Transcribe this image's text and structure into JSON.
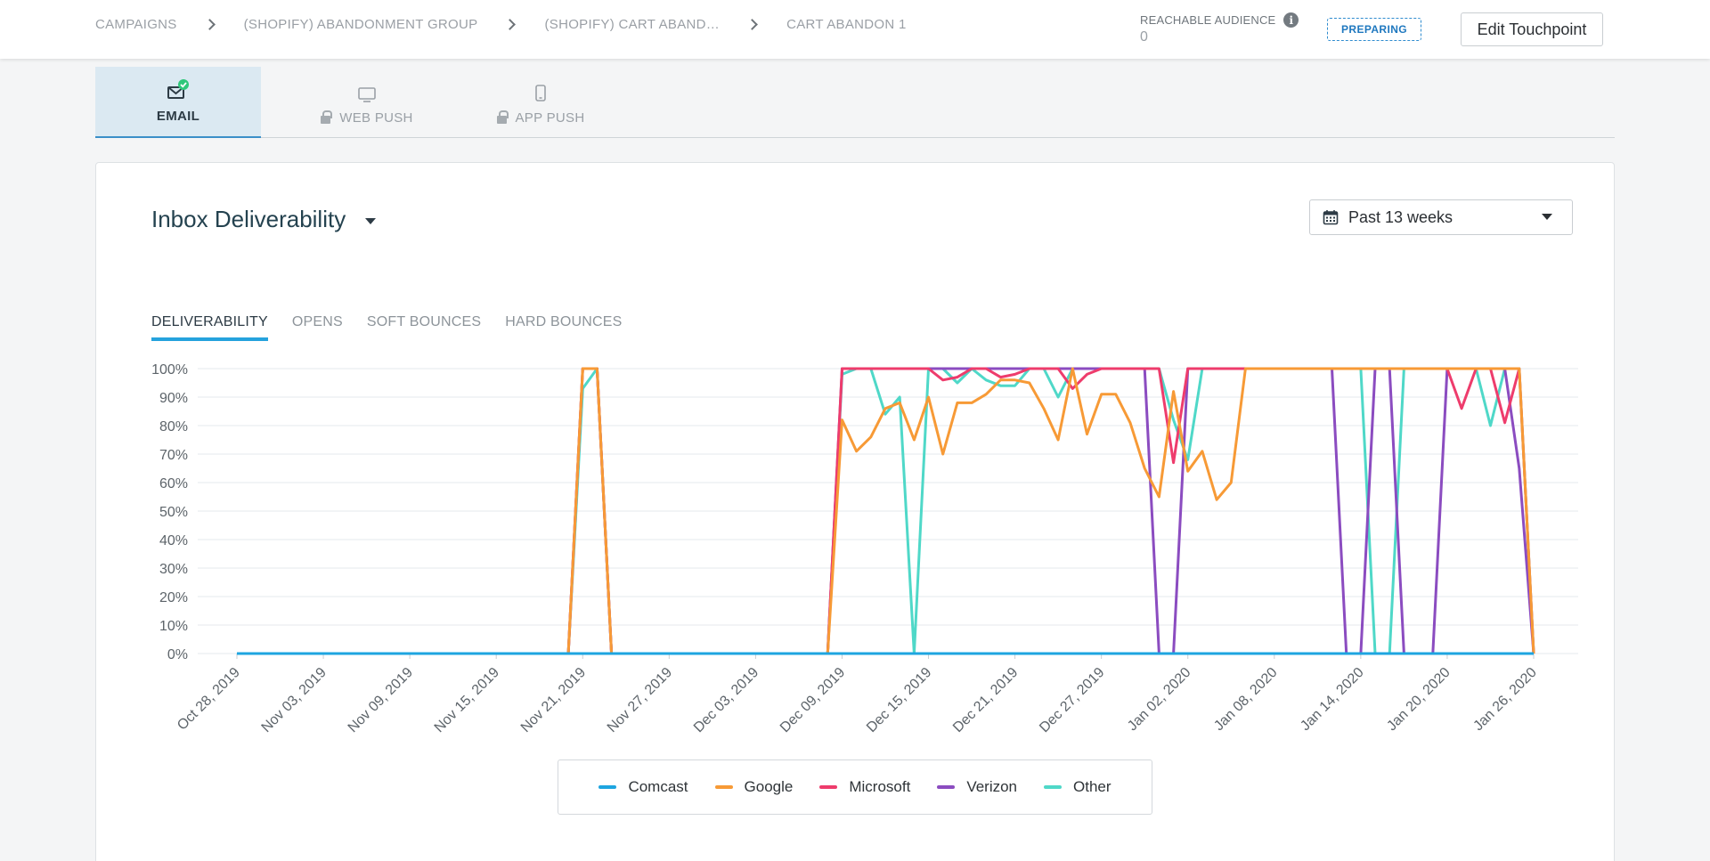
{
  "breadcrumb": [
    "CAMPAIGNS",
    "(SHOPIFY) ABANDONMENT GROUP",
    "(SHOPIFY) CART ABAND…",
    "CART ABANDON 1"
  ],
  "audience": {
    "label": "REACHABLE AUDIENCE",
    "value": "0",
    "info_icon": "info-icon"
  },
  "status": "PREPARING",
  "edit_button": "Edit Touchpoint",
  "channel_tabs": [
    {
      "label": "EMAIL",
      "icon": "envelope-check-icon",
      "active": true
    },
    {
      "label": "WEB PUSH",
      "icon": "monitor-icon",
      "locked": true
    },
    {
      "label": "APP PUSH",
      "icon": "phone-icon",
      "locked": true
    }
  ],
  "report": {
    "title": "Inbox Deliverability",
    "date_range": "Past 13 weeks"
  },
  "metric_tabs": [
    "DELIVERABILITY",
    "OPENS",
    "SOFT BOUNCES",
    "HARD BOUNCES"
  ],
  "colors": {
    "Comcast": "#1ea5e0",
    "Google": "#f79a36",
    "Microsoft": "#ee3c6c",
    "Verizon": "#8b4cc0",
    "Other": "#4fd8c8",
    "accent": "#25a2dd"
  },
  "chart_data": {
    "type": "line",
    "title": "",
    "xlabel": "",
    "ylabel": "",
    "ylim": [
      0,
      100
    ],
    "y_ticks": [
      "0%",
      "10%",
      "20%",
      "30%",
      "40%",
      "50%",
      "60%",
      "70%",
      "80%",
      "90%",
      "100%"
    ],
    "x_ticks": [
      "Oct 28, 2019",
      "Nov 03, 2019",
      "Nov 09, 2019",
      "Nov 15, 2019",
      "Nov 21, 2019",
      "Nov 27, 2019",
      "Dec 03, 2019",
      "Dec 09, 2019",
      "Dec 15, 2019",
      "Dec 21, 2019",
      "Dec 27, 2019",
      "Jan 02, 2020",
      "Jan 08, 2020",
      "Jan 14, 2020",
      "Jan 20, 2020",
      "Jan 26, 2020"
    ],
    "x_start": "2019-10-28",
    "x_end": "2020-01-26",
    "grid": true,
    "legend": "bottom",
    "series": [
      {
        "name": "Comcast",
        "points": [
          [
            "2019-10-28",
            0
          ],
          [
            "2020-01-26",
            0
          ]
        ]
      },
      {
        "name": "Google",
        "points": [
          [
            "2019-10-28",
            0
          ],
          [
            "2019-11-20",
            0
          ],
          [
            "2019-11-21",
            100
          ],
          [
            "2019-11-22",
            100
          ],
          [
            "2019-11-23",
            0
          ],
          [
            "2019-12-08",
            0
          ],
          [
            "2019-12-09",
            82
          ],
          [
            "2019-12-10",
            71
          ],
          [
            "2019-12-11",
            76
          ],
          [
            "2019-12-12",
            86
          ],
          [
            "2019-12-13",
            88
          ],
          [
            "2019-12-14",
            75
          ],
          [
            "2019-12-15",
            90
          ],
          [
            "2019-12-16",
            70
          ],
          [
            "2019-12-17",
            88
          ],
          [
            "2019-12-18",
            88
          ],
          [
            "2019-12-19",
            91
          ],
          [
            "2019-12-20",
            96
          ],
          [
            "2019-12-21",
            96
          ],
          [
            "2019-12-22",
            95
          ],
          [
            "2019-12-23",
            86
          ],
          [
            "2019-12-24",
            75
          ],
          [
            "2019-12-25",
            100
          ],
          [
            "2019-12-26",
            77
          ],
          [
            "2019-12-27",
            91
          ],
          [
            "2019-12-28",
            91
          ],
          [
            "2019-12-29",
            81
          ],
          [
            "2019-12-30",
            65
          ],
          [
            "2019-12-31",
            55
          ],
          [
            "2020-01-01",
            92
          ],
          [
            "2020-01-02",
            64
          ],
          [
            "2020-01-03",
            71
          ],
          [
            "2020-01-04",
            54
          ],
          [
            "2020-01-05",
            60
          ],
          [
            "2020-01-06",
            100
          ],
          [
            "2020-01-25",
            100
          ],
          [
            "2020-01-26",
            0
          ]
        ]
      },
      {
        "name": "Microsoft",
        "points": [
          [
            "2019-10-28",
            0
          ],
          [
            "2019-11-20",
            0
          ],
          [
            "2019-11-21",
            100
          ],
          [
            "2019-11-22",
            100
          ],
          [
            "2019-11-23",
            0
          ],
          [
            "2019-12-08",
            0
          ],
          [
            "2019-12-09",
            100
          ],
          [
            "2019-12-15",
            100
          ],
          [
            "2019-12-16",
            96
          ],
          [
            "2019-12-17",
            97
          ],
          [
            "2019-12-18",
            100
          ],
          [
            "2019-12-19",
            100
          ],
          [
            "2019-12-20",
            97
          ],
          [
            "2019-12-21",
            98
          ],
          [
            "2019-12-22",
            100
          ],
          [
            "2019-12-24",
            100
          ],
          [
            "2019-12-25",
            93
          ],
          [
            "2019-12-26",
            98
          ],
          [
            "2019-12-27",
            100
          ],
          [
            "2019-12-31",
            100
          ],
          [
            "2020-01-01",
            67
          ],
          [
            "2020-01-02",
            100
          ],
          [
            "2020-01-20",
            100
          ],
          [
            "2020-01-21",
            86
          ],
          [
            "2020-01-22",
            100
          ],
          [
            "2020-01-23",
            100
          ],
          [
            "2020-01-24",
            81
          ],
          [
            "2020-01-25",
            100
          ],
          [
            "2020-01-26",
            0
          ]
        ]
      },
      {
        "name": "Verizon",
        "points": [
          [
            "2019-10-28",
            0
          ],
          [
            "2019-11-20",
            0
          ],
          [
            "2019-11-21",
            100
          ],
          [
            "2019-11-22",
            100
          ],
          [
            "2019-11-23",
            0
          ],
          [
            "2019-12-08",
            0
          ],
          [
            "2019-12-09",
            100
          ],
          [
            "2019-12-30",
            100
          ],
          [
            "2019-12-31",
            0
          ],
          [
            "2020-01-01",
            0
          ],
          [
            "2020-01-02",
            100
          ],
          [
            "2020-01-12",
            100
          ],
          [
            "2020-01-13",
            0
          ],
          [
            "2020-01-14",
            0
          ],
          [
            "2020-01-15",
            100
          ],
          [
            "2020-01-16",
            100
          ],
          [
            "2020-01-17",
            0
          ],
          [
            "2020-01-19",
            0
          ],
          [
            "2020-01-20",
            100
          ],
          [
            "2020-01-24",
            100
          ],
          [
            "2020-01-25",
            65
          ],
          [
            "2020-01-26",
            0
          ]
        ]
      },
      {
        "name": "Other",
        "points": [
          [
            "2019-10-28",
            0
          ],
          [
            "2019-11-20",
            0
          ],
          [
            "2019-11-21",
            93
          ],
          [
            "2019-11-22",
            100
          ],
          [
            "2019-11-23",
            0
          ],
          [
            "2019-12-08",
            0
          ],
          [
            "2019-12-09",
            98
          ],
          [
            "2019-12-10",
            100
          ],
          [
            "2019-12-11",
            100
          ],
          [
            "2019-12-12",
            84
          ],
          [
            "2019-12-13",
            90
          ],
          [
            "2019-12-14",
            0
          ],
          [
            "2019-12-15",
            100
          ],
          [
            "2019-12-16",
            100
          ],
          [
            "2019-12-17",
            95
          ],
          [
            "2019-12-18",
            100
          ],
          [
            "2019-12-19",
            96
          ],
          [
            "2019-12-20",
            94
          ],
          [
            "2019-12-21",
            94
          ],
          [
            "2019-12-22",
            100
          ],
          [
            "2019-12-23",
            100
          ],
          [
            "2019-12-24",
            90
          ],
          [
            "2019-12-25",
            100
          ],
          [
            "2019-12-31",
            100
          ],
          [
            "2020-01-01",
            82
          ],
          [
            "2020-01-02",
            68
          ],
          [
            "2020-01-03",
            100
          ],
          [
            "2020-01-14",
            100
          ],
          [
            "2020-01-15",
            0
          ],
          [
            "2020-01-16",
            0
          ],
          [
            "2020-01-17",
            100
          ],
          [
            "2020-01-22",
            100
          ],
          [
            "2020-01-23",
            80
          ],
          [
            "2020-01-24",
            100
          ],
          [
            "2020-01-25",
            100
          ],
          [
            "2020-01-26",
            0
          ]
        ]
      }
    ]
  }
}
